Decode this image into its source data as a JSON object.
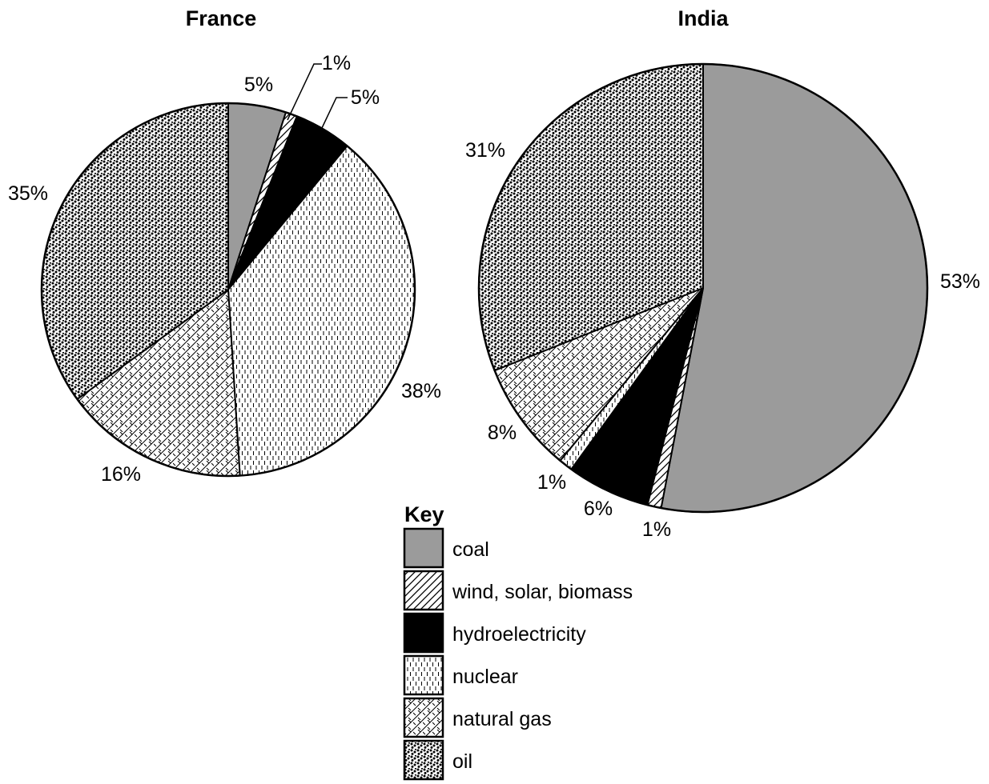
{
  "chart_data": {
    "type": "pie",
    "key": {
      "title": "Key",
      "entries": [
        {
          "name": "coal",
          "pattern": "gray-fill",
          "color": "#9b9b9b"
        },
        {
          "name": "wind, solar, biomass",
          "pattern": "diagonal-hatch",
          "color": "#ffffff"
        },
        {
          "name": "hydroelectricity",
          "pattern": "solid-black",
          "color": "#000000"
        },
        {
          "name": "nuclear",
          "pattern": "vertical-dash",
          "color": "#ffffff"
        },
        {
          "name": "natural gas",
          "pattern": "crosshatch",
          "color": "#ffffff"
        },
        {
          "name": "oil",
          "pattern": "dense-dots",
          "color": "#ffffff"
        }
      ]
    },
    "charts": [
      {
        "title": "France",
        "slices": [
          {
            "category": "coal",
            "value": 5,
            "label": "5%"
          },
          {
            "category": "wind, solar, biomass",
            "value": 1,
            "label": "1%"
          },
          {
            "category": "hydroelectricity",
            "value": 5,
            "label": "5%"
          },
          {
            "category": "nuclear",
            "value": 38,
            "label": "38%"
          },
          {
            "category": "natural gas",
            "value": 16,
            "label": "16%"
          },
          {
            "category": "oil",
            "value": 35,
            "label": "35%"
          }
        ]
      },
      {
        "title": "India",
        "slices": [
          {
            "category": "coal",
            "value": 53,
            "label": "53%"
          },
          {
            "category": "wind, solar, biomass",
            "value": 1,
            "label": "1%"
          },
          {
            "category": "hydroelectricity",
            "value": 6,
            "label": "6%"
          },
          {
            "category": "nuclear",
            "value": 1,
            "label": "1%"
          },
          {
            "category": "natural gas",
            "value": 8,
            "label": "8%"
          },
          {
            "category": "oil",
            "value": 31,
            "label": "31%"
          }
        ]
      }
    ]
  }
}
